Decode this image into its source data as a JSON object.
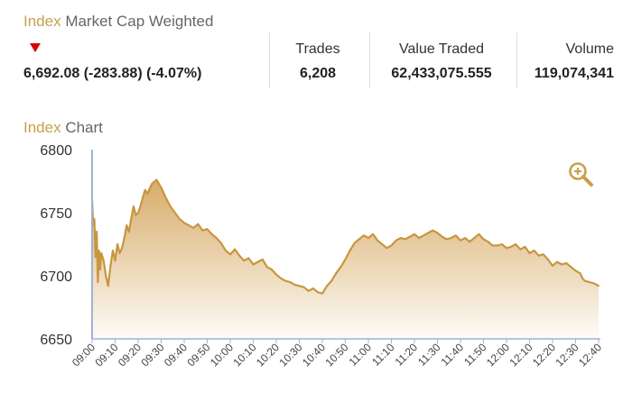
{
  "header": {
    "title_accent": "Index",
    "title_rest": " Market Cap Weighted",
    "change_direction": "down",
    "summary": "6,692.08 (-283.88) (-4.07%)",
    "stats": [
      {
        "label": "Trades",
        "value": "6,208"
      },
      {
        "label": "Value Traded",
        "value": "62,433,075.555"
      },
      {
        "label": "Volume",
        "value": "119,074,341"
      }
    ]
  },
  "chart_section": {
    "title_accent": "Index",
    "title_rest": " Chart",
    "zoom_icon": "zoom-in-icon"
  },
  "colors": {
    "accent": "#c8a04a",
    "down": "#d80000",
    "line": "#c9963e",
    "fill_top": "#d8ac6b",
    "fill_bottom": "#fdfbf6"
  },
  "chart_data": {
    "type": "area",
    "title": "Index Chart",
    "xlabel": "",
    "ylabel": "",
    "ylim": [
      6650,
      6800
    ],
    "yticks": [
      "6800",
      "6750",
      "6700",
      "6650"
    ],
    "xticks": [
      "09:00",
      "09:10",
      "09:20",
      "09:30",
      "09:40",
      "09:50",
      "10:00",
      "10:10",
      "10:20",
      "10:30",
      "10:40",
      "10:50",
      "11:00",
      "11:10",
      "11:20",
      "11:30",
      "11:40",
      "11:50",
      "12:00",
      "12:10",
      "12:20",
      "12:30",
      "12:40"
    ],
    "x_minutes": [
      0,
      0.5,
      1,
      1.5,
      2,
      2.5,
      3,
      3.5,
      4,
      5,
      6,
      7,
      8,
      9,
      10,
      11,
      12,
      13,
      14,
      15,
      16,
      17,
      18,
      19,
      20,
      21,
      22,
      23,
      24,
      26,
      28,
      30,
      32,
      34,
      36,
      38,
      40,
      42,
      44,
      46,
      48,
      50,
      52,
      54,
      56,
      58,
      60,
      62,
      64,
      66,
      68,
      70,
      72,
      74,
      76,
      78,
      80,
      82,
      84,
      86,
      88,
      90,
      92,
      94,
      96,
      98,
      100,
      102,
      104,
      106,
      108,
      110,
      112,
      114,
      116,
      118,
      120,
      122,
      124,
      126,
      128,
      130,
      132,
      134,
      136,
      138,
      140,
      142,
      144,
      146,
      148,
      150,
      152,
      154,
      156,
      158,
      160,
      162,
      164,
      166,
      168,
      170,
      172,
      174,
      176,
      178,
      180,
      182,
      184,
      186,
      188,
      190,
      192,
      194,
      196,
      198,
      200,
      202,
      204,
      206,
      208,
      210,
      212,
      213,
      214,
      216,
      218,
      220
    ],
    "values": [
      6760,
      6740,
      6745,
      6715,
      6735,
      6695,
      6720,
      6705,
      6718,
      6712,
      6700,
      6692,
      6708,
      6720,
      6712,
      6725,
      6718,
      6722,
      6730,
      6740,
      6735,
      6745,
      6755,
      6748,
      6750,
      6755,
      6762,
      6768,
      6765,
      6773,
      6776,
      6770,
      6762,
      6755,
      6750,
      6745,
      6742,
      6740,
      6738,
      6741,
      6736,
      6737,
      6733,
      6730,
      6726,
      6720,
      6717,
      6721,
      6716,
      6712,
      6714,
      6709,
      6711,
      6713,
      6707,
      6705,
      6701,
      6698,
      6696,
      6695,
      6693,
      6692,
      6691,
      6688,
      6690,
      6687,
      6686,
      6692,
      6696,
      6702,
      6707,
      6713,
      6720,
      6726,
      6729,
      6732,
      6730,
      6733,
      6728,
      6725,
      6722,
      6724,
      6728,
      6730,
      6729,
      6731,
      6733,
      6730,
      6732,
      6734,
      6736,
      6734,
      6731,
      6729,
      6730,
      6732,
      6728,
      6730,
      6727,
      6730,
      6733,
      6729,
      6727,
      6724,
      6724,
      6725,
      6722,
      6723,
      6725,
      6721,
      6723,
      6718,
      6720,
      6716,
      6717,
      6713,
      6708,
      6711,
      6709,
      6710,
      6707,
      6704,
      6702,
      6698,
      6696,
      6695,
      6694,
      6692
    ]
  }
}
